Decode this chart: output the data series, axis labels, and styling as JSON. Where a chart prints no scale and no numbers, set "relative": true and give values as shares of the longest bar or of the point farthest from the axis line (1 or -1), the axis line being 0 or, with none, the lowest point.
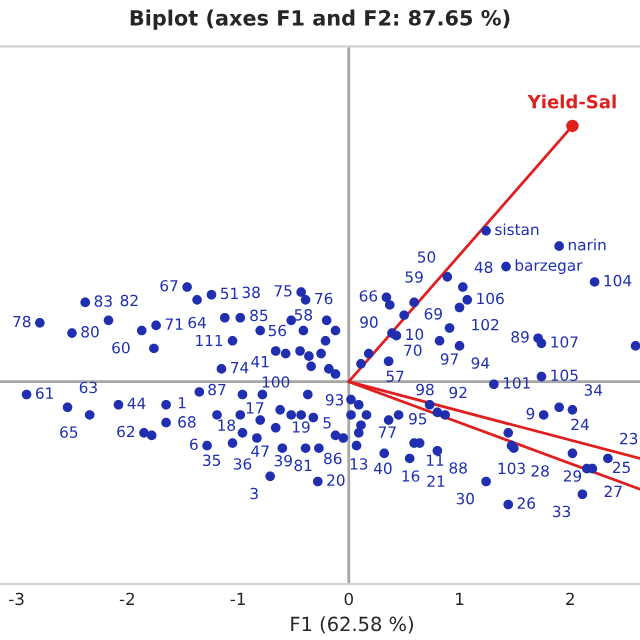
{
  "chart_data": {
    "type": "scatter",
    "title": "Biplot (axes F1 and F2: 87.65 %)",
    "xlabel": "F1 (62.58 %)",
    "relative": true,
    "xlim": [
      -3.15,
      2.63
    ],
    "xticks": [
      {
        "value": -3,
        "label": "-3"
      },
      {
        "value": -2,
        "label": "-2"
      },
      {
        "value": -1,
        "label": "-1"
      },
      0,
      1,
      2
    ],
    "tick_labels": "x",
    "ref_lines": [
      {
        "axis": "x",
        "value": 0,
        "color": "#a6a6a6"
      }
    ],
    "series": [
      {
        "color": "#1f2fb0",
        "marker": "circle",
        "x": [
          -2.38,
          -2.79,
          -2.5,
          -2.17,
          -1.74,
          -1.87,
          -1.46,
          -1.37,
          -1.24,
          -1.15,
          -1.76,
          -1.12,
          -0.43,
          -0.98,
          -0.52,
          -1.05,
          -0.8,
          -0.39,
          -0.41,
          -0.66,
          -0.57,
          -0.44,
          -0.36,
          -0.25,
          -0.34,
          -0.2,
          -0.12,
          -0.21,
          -0.18,
          -0.12,
          -2.91,
          -2.54,
          -2.34,
          -2.08,
          -1.65,
          -1.65,
          -1.35,
          -1.19,
          -0.98,
          -0.8,
          -0.78,
          -0.96,
          -0.62,
          -0.52,
          -0.43,
          -0.32,
          -0.37,
          -1.85,
          -1.78,
          -1.28,
          -1.05,
          -0.96,
          -0.83,
          -0.66,
          -0.6,
          -0.71,
          -0.28,
          -0.39,
          -0.27,
          1.24,
          1.9,
          1.42,
          2.22,
          0.89,
          1.03,
          1.07,
          1.0,
          0.91,
          1.0,
          0.82,
          0.34,
          0.59,
          0.37,
          0.5,
          0.39,
          0.43,
          0.18,
          0.11,
          0.36,
          1.71,
          1.74,
          1.74,
          2.59,
          1.31,
          1.76,
          1.9,
          2.02,
          0.16,
          0.02,
          0.09,
          0.02,
          0.36,
          0.45,
          0.73,
          0.8,
          0.87,
          0.11,
          -0.12,
          -0.05,
          0.07,
          0.09,
          0.32,
          0.55,
          0.59,
          0.64,
          0.8,
          1.47,
          1.49,
          1.44,
          1.24,
          1.44,
          2.02,
          2.15,
          2.2,
          2.34,
          2.11
        ],
        "values": [
          0.31,
          0.23,
          0.19,
          0.24,
          0.22,
          0.2,
          0.37,
          0.32,
          0.34,
          0.05,
          0.13,
          0.25,
          0.35,
          0.25,
          0.24,
          0.16,
          0.2,
          0.32,
          0.2,
          0.12,
          0.11,
          0.12,
          0.1,
          0.11,
          0.06,
          0.24,
          0.2,
          0.16,
          0.05,
          0.03,
          -0.05,
          -0.1,
          -0.13,
          -0.09,
          -0.09,
          -0.16,
          -0.04,
          -0.13,
          -0.13,
          -0.15,
          -0.05,
          -0.05,
          -0.11,
          -0.13,
          -0.13,
          -0.14,
          -0.05,
          -0.2,
          -0.21,
          -0.25,
          -0.24,
          -0.2,
          -0.22,
          -0.18,
          -0.26,
          -0.37,
          -0.39,
          -0.26,
          -0.26,
          0.59,
          0.53,
          0.45,
          0.39,
          0.41,
          0.37,
          0.32,
          0.29,
          0.21,
          0.14,
          0.16,
          0.33,
          0.31,
          0.3,
          0.26,
          0.19,
          0.18,
          0.11,
          0.07,
          0.08,
          0.17,
          0.15,
          0.02,
          0.14,
          -0.01,
          -0.13,
          -0.1,
          -0.11,
          -0.13,
          -0.07,
          -0.09,
          -0.13,
          -0.15,
          -0.13,
          -0.09,
          -0.12,
          -0.13,
          -0.17,
          -0.21,
          -0.22,
          -0.25,
          -0.2,
          -0.28,
          -0.3,
          -0.24,
          -0.24,
          -0.27,
          -0.25,
          -0.26,
          -0.2,
          -0.39,
          -0.48,
          -0.28,
          -0.34,
          -0.34,
          -0.3,
          -0.44
        ]
      },
      {
        "type": "line",
        "name": "Yield-Sal",
        "color": "#e02020",
        "marker": "circle",
        "x": [
          0,
          2.02
        ],
        "values": [
          0,
          1
        ]
      },
      {
        "type": "line",
        "color": "#e02020",
        "x": [
          0,
          2.63
        ],
        "values": [
          0,
          -0.3
        ]
      },
      {
        "type": "line",
        "color": "#e02020",
        "x": [
          0,
          2.63
        ],
        "values": [
          0,
          -0.42
        ]
      }
    ],
    "annotations": [
      {
        "text": "83",
        "x": -2.38,
        "y": 0.31
      },
      {
        "text": "78",
        "x": -2.79,
        "y": 0.23
      },
      {
        "text": "80",
        "x": -2.5,
        "y": 0.19
      },
      {
        "text": "82",
        "x": -2.17,
        "y": 0.24
      },
      {
        "text": "71",
        "x": -1.74,
        "y": 0.22
      },
      {
        "text": "60",
        "x": -1.87,
        "y": 0.2
      },
      {
        "text": "67",
        "x": -1.46,
        "y": 0.37
      },
      {
        "text": "64",
        "x": -1.37,
        "y": 0.32
      },
      {
        "text": "51",
        "x": -1.24,
        "y": 0.34
      },
      {
        "text": "74",
        "x": -1.15,
        "y": 0.05
      },
      {
        "text": "38",
        "x": -1.12,
        "y": 0.25
      },
      {
        "text": "75",
        "x": -0.43,
        "y": 0.35
      },
      {
        "text": "111",
        "x": -0.98,
        "y": 0.25
      },
      {
        "text": "56",
        "x": -0.52,
        "y": 0.24
      },
      {
        "text": "85",
        "x": -1.05,
        "y": 0.16
      },
      {
        "text": "41",
        "x": -0.8,
        "y": 0.2
      },
      {
        "text": "76",
        "x": -0.39,
        "y": 0.32
      },
      {
        "text": "58",
        "x": -0.41,
        "y": 0.2
      },
      {
        "text": "100",
        "x": -0.66,
        "y": 0.12
      },
      {
        "text": "61",
        "x": -2.91,
        "y": -0.05
      },
      {
        "text": "63",
        "x": -2.54,
        "y": -0.1
      },
      {
        "text": "65",
        "x": -2.34,
        "y": -0.13
      },
      {
        "text": "44",
        "x": -2.08,
        "y": -0.09
      },
      {
        "text": "68",
        "x": -1.65,
        "y": -0.09
      },
      {
        "text": "1",
        "x": -1.65,
        "y": -0.16
      },
      {
        "text": "87",
        "x": -1.19,
        "y": -0.13
      },
      {
        "text": "18",
        "x": -0.98,
        "y": -0.13
      },
      {
        "text": "47",
        "x": -0.8,
        "y": -0.15
      },
      {
        "text": "19",
        "x": -0.62,
        "y": -0.11
      },
      {
        "text": "62",
        "x": -1.85,
        "y": -0.2
      },
      {
        "text": "6",
        "x": -1.28,
        "y": -0.25
      },
      {
        "text": "35",
        "x": -1.05,
        "y": -0.24
      },
      {
        "text": "36",
        "x": -0.96,
        "y": -0.2
      },
      {
        "text": "39",
        "x": -0.83,
        "y": -0.22
      },
      {
        "text": "17",
        "x": -0.66,
        "y": -0.18
      },
      {
        "text": "81",
        "x": -0.6,
        "y": -0.26
      },
      {
        "text": "3",
        "x": -0.71,
        "y": -0.37
      },
      {
        "text": "20",
        "x": -0.28,
        "y": -0.39
      },
      {
        "text": "5",
        "x": -0.39,
        "y": -0.26
      },
      {
        "text": "86",
        "x": -0.27,
        "y": -0.26
      },
      {
        "text": "sistan",
        "x": 1.24,
        "y": 0.59
      },
      {
        "text": "narin",
        "x": 1.9,
        "y": 0.53
      },
      {
        "text": "barzegar",
        "x": 1.42,
        "y": 0.45
      },
      {
        "text": "104",
        "x": 2.22,
        "y": 0.39
      },
      {
        "text": "50",
        "x": 0.89,
        "y": 0.41
      },
      {
        "text": "48",
        "x": 1.03,
        "y": 0.37
      },
      {
        "text": "106",
        "x": 1.07,
        "y": 0.32
      },
      {
        "text": "102",
        "x": 1.0,
        "y": 0.29
      },
      {
        "text": "97",
        "x": 0.91,
        "y": 0.21
      },
      {
        "text": "94",
        "x": 1.0,
        "y": 0.14
      },
      {
        "text": "66",
        "x": 0.34,
        "y": 0.33
      },
      {
        "text": "59",
        "x": 0.59,
        "y": 0.31
      },
      {
        "text": "90",
        "x": 0.37,
        "y": 0.3
      },
      {
        "text": "69",
        "x": 0.5,
        "y": 0.26
      },
      {
        "text": "70",
        "x": 0.39,
        "y": 0.19
      },
      {
        "text": "10",
        "x": 0.43,
        "y": 0.18
      },
      {
        "text": "57",
        "x": 0.18,
        "y": 0.11
      },
      {
        "text": "89",
        "x": 1.71,
        "y": 0.17
      },
      {
        "text": "107",
        "x": 1.74,
        "y": 0.15
      },
      {
        "text": "105",
        "x": 1.74,
        "y": 0.02
      },
      {
        "text": "101",
        "x": 1.31,
        "y": -0.01
      },
      {
        "text": "9",
        "x": 1.76,
        "y": -0.13
      },
      {
        "text": "24",
        "x": 1.9,
        "y": -0.1
      },
      {
        "text": "34",
        "x": 2.02,
        "y": -0.11
      },
      {
        "text": "77",
        "x": 0.16,
        "y": -0.13
      },
      {
        "text": "95",
        "x": 0.36,
        "y": -0.15
      },
      {
        "text": "98",
        "x": 0.45,
        "y": -0.13
      },
      {
        "text": "92",
        "x": 0.8,
        "y": -0.12
      },
      {
        "text": "93",
        "x": 0.11,
        "y": -0.17
      },
      {
        "text": "40",
        "x": 0.07,
        "y": -0.25
      },
      {
        "text": "13",
        "x": 0.09,
        "y": -0.2
      },
      {
        "text": "16",
        "x": 0.32,
        "y": -0.28
      },
      {
        "text": "21",
        "x": 0.55,
        "y": -0.3
      },
      {
        "text": "11",
        "x": 0.59,
        "y": -0.24
      },
      {
        "text": "88",
        "x": 0.8,
        "y": -0.27
      },
      {
        "text": "103",
        "x": 1.47,
        "y": -0.25
      },
      {
        "text": "28",
        "x": 1.49,
        "y": -0.26
      },
      {
        "text": "30",
        "x": 1.24,
        "y": -0.39
      },
      {
        "text": "26",
        "x": 1.44,
        "y": -0.48
      },
      {
        "text": "29",
        "x": 2.02,
        "y": -0.28
      },
      {
        "text": "27",
        "x": 2.15,
        "y": -0.34
      },
      {
        "text": "25",
        "x": 2.2,
        "y": -0.34
      },
      {
        "text": "23",
        "x": 2.34,
        "y": -0.3
      },
      {
        "text": "33",
        "x": 2.11,
        "y": -0.44
      }
    ]
  }
}
